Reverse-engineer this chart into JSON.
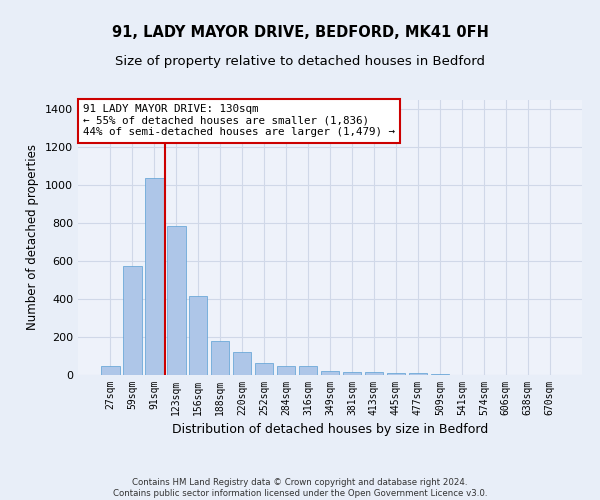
{
  "title_line1": "91, LADY MAYOR DRIVE, BEDFORD, MK41 0FH",
  "title_line2": "Size of property relative to detached houses in Bedford",
  "xlabel": "Distribution of detached houses by size in Bedford",
  "ylabel": "Number of detached properties",
  "categories": [
    "27sqm",
    "59sqm",
    "91sqm",
    "123sqm",
    "156sqm",
    "188sqm",
    "220sqm",
    "252sqm",
    "284sqm",
    "316sqm",
    "349sqm",
    "381sqm",
    "413sqm",
    "445sqm",
    "477sqm",
    "509sqm",
    "541sqm",
    "574sqm",
    "606sqm",
    "638sqm",
    "670sqm"
  ],
  "values": [
    47,
    573,
    1040,
    785,
    418,
    180,
    120,
    65,
    48,
    48,
    22,
    15,
    15,
    8,
    8,
    5,
    2,
    0,
    0,
    0,
    0
  ],
  "bar_color": "#aec6e8",
  "bar_edge_color": "#5a9fd4",
  "vline_color": "#cc0000",
  "annotation_text": "91 LADY MAYOR DRIVE: 130sqm\n← 55% of detached houses are smaller (1,836)\n44% of semi-detached houses are larger (1,479) →",
  "annotation_box_color": "#ffffff",
  "annotation_box_edge": "#cc0000",
  "ylim": [
    0,
    1450
  ],
  "yticks": [
    0,
    200,
    400,
    600,
    800,
    1000,
    1200,
    1400
  ],
  "grid_color": "#d0d8e8",
  "bg_color": "#e8eef8",
  "plot_bg_color": "#eef2fa",
  "footnote": "Contains HM Land Registry data © Crown copyright and database right 2024.\nContains public sector information licensed under the Open Government Licence v3.0.",
  "title_fontsize": 10.5,
  "subtitle_fontsize": 9.5,
  "label_fontsize": 8.5,
  "tick_fontsize": 7
}
